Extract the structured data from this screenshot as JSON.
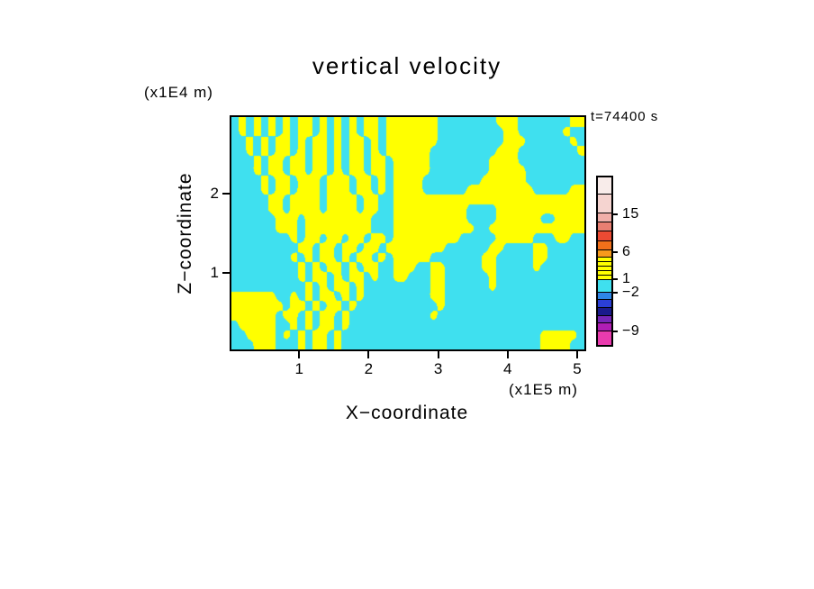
{
  "chart_data": {
    "type": "heatmap",
    "title": "vertical velocity",
    "xlabel": "X−coordinate",
    "ylabel": "Z−coordinate",
    "x_unit": "(x1E5 m)",
    "y_unit": "(x1E4 m)",
    "annotation": "t=74400 s",
    "x_ticks": [
      1,
      2,
      3,
      4,
      5
    ],
    "y_ticks": [
      1,
      2
    ],
    "x_range": [
      0,
      5.13
    ],
    "y_range": [
      0,
      3.0
    ],
    "grid_on": false,
    "legend_position": "right-colorbar",
    "field_colors": {
      "cyan": "#3FE0EF",
      "yellow": "#FFFF00"
    },
    "grid_rows": [
      "cycycycycyycycycycyycyyyyyyyccccccccyyycccccccyy",
      "cycycycycyycycycycyycyyyyyyycccccccccyyccccccycc",
      "ccycycyycycyycycyycycyyyyyyycccccccccyyyccccccyc",
      "ccycycyycycyycycyycycyyyyyycccccccccyyyccccccccy",
      "cccycyycyycyycycyycyycyyyyyccccccccyyyyccccccccc",
      "cccycyycyycyycycyycyycyyyyyccccccccyyyyycccccccc",
      "ccccycyycyyycyyycyycycyyyyccccccccyyyyyycccccccc",
      "ccccycyycyyycyyycyycycyyyyccccccyyyyyyyyycccccyy",
      "cccccyycyyyycyyyycyyccyyyyyyyyyyyyyyyyyyyyyyyyyy",
      "cccccyycyyyycyyyycyyccyyyyyyyyyyccccyyyyyyyyyyyy",
      "ccccccyyycyyyyyyyyycccyyyyyyyyyyccccyyyyyyccyyyy",
      "ccccccyyycyyyyyyyyycccyyyyyyyyyyyccyyyyyyyyyyyyy",
      "ccccccccycyycyycyycyycyyyyyyyyycccccyyyyycccyycc",
      "cccccccccyycyycyycyycyyyyyyyyccccccyyccccyyccccc",
      "ccccccccycycyycycyycycyyyyycccccccyycccccyyccccc",
      "cccccccccycycyycycyyccyyyccyycccccyycccccycccccc",
      "cccccccccycyycycyycyccyycccyyccccccycccccccccccc",
      "ccccccccccycycyycycccccccccyyccccccycccccccccccc",
      "yyyyyyccycycyycycycccccccccyyccccccccccccccccccc",
      "yyyyyyycyycycyycycccccccccccyccccccccccccccccccc",
      "yyyyyycyycycyycycccccccccccycccccccccccccccccccc",
      "cyyyyyccycycyycycccccccccccccccccccccccccccccccc",
      "ccyyyycycycyycycccccccccccccccccccccccccccyyyyyc",
      "cccyyycccycyycycccccccccccccccccccccccccccyyyycc"
    ],
    "colorbar": {
      "segments": [
        {
          "color": "#F8ECEA",
          "weight": 0.11
        },
        {
          "color": "#F5D4D0",
          "weight": 0.116
        },
        {
          "color": "#F0AFA9",
          "weight": 0.055
        },
        {
          "color": "#E97F72",
          "weight": 0.055
        },
        {
          "color": "#EC4A33",
          "weight": 0.056
        },
        {
          "color": "#F2701A",
          "weight": 0.056
        },
        {
          "color": "#F79A1C",
          "weight": 0.04
        },
        {
          "color": "#FFFF00",
          "weight": 0.0234
        },
        {
          "color": "#FFFF00",
          "weight": 0.0234
        },
        {
          "color": "#FFFF00",
          "weight": 0.0234
        },
        {
          "color": "#FFFF00",
          "weight": 0.0234
        },
        {
          "color": "#FFFF00",
          "weight": 0.0234
        },
        {
          "color": "#3FE0EF",
          "weight": 0.079
        },
        {
          "color": "#2E86E8",
          "weight": 0.045
        },
        {
          "color": "#2B3FD6",
          "weight": 0.045
        },
        {
          "color": "#1A1A8C",
          "weight": 0.045
        },
        {
          "color": "#7726B8",
          "weight": 0.045
        },
        {
          "color": "#B01EB4",
          "weight": 0.047
        },
        {
          "color": "#E93BAE",
          "weight": 0.089
        }
      ],
      "labels": [
        {
          "text": "15",
          "pos": 0.226
        },
        {
          "text": "6",
          "pos": 0.448
        },
        {
          "text": "1",
          "pos": 0.605
        },
        {
          "text": "−2",
          "pos": 0.684
        },
        {
          "text": "−9",
          "pos": 0.911
        }
      ]
    }
  }
}
